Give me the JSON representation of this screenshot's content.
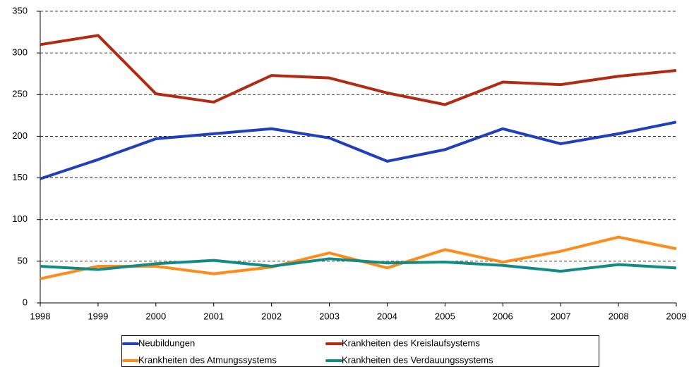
{
  "chart_data": {
    "type": "line",
    "categories": [
      "1998",
      "1999",
      "2000",
      "2001",
      "2002",
      "2003",
      "2004",
      "2005",
      "2006",
      "2007",
      "2008",
      "2009"
    ],
    "series": [
      {
        "name": "Neubildungen",
        "color": "#1f3fbf",
        "values": [
          149,
          172,
          197,
          203,
          209,
          198,
          170,
          184,
          209,
          191,
          203,
          217
        ]
      },
      {
        "name": "Krankheiten des Kreislaufsystems",
        "color": "#b32a14",
        "values": [
          310,
          321,
          251,
          241,
          273,
          270,
          252,
          238,
          265,
          262,
          272,
          279
        ]
      },
      {
        "name": "Krankheiten des Atmungssystems",
        "color": "#ff8c1a",
        "values": [
          29,
          44,
          44,
          35,
          43,
          60,
          42,
          64,
          49,
          62,
          79,
          65
        ]
      },
      {
        "name": "Krankheiten des Verdauungssystems",
        "color": "#138a84",
        "values": [
          44,
          40,
          47,
          51,
          44,
          53,
          48,
          49,
          45,
          38,
          46,
          42
        ]
      }
    ],
    "ylim": [
      0,
      350
    ],
    "yticks": [
      0,
      50,
      100,
      150,
      200,
      250,
      300,
      350
    ],
    "grid": true,
    "legend": "bottom"
  }
}
